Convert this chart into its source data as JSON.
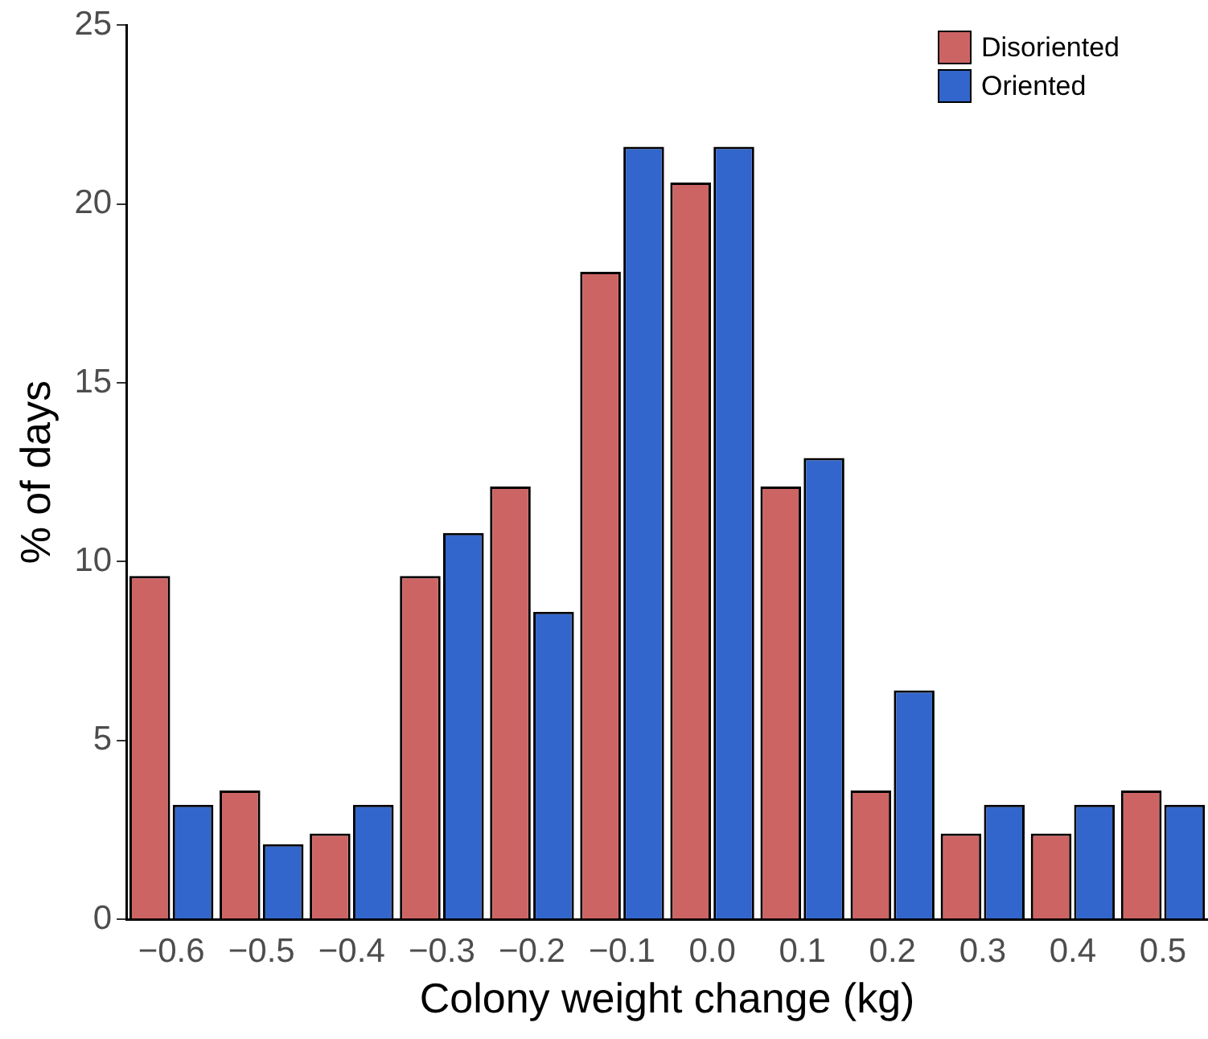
{
  "chart_data": {
    "type": "bar",
    "xlabel": "Colony weight change (kg)",
    "ylabel": "% of days",
    "categories": [
      "−0.6",
      "−0.5",
      "−0.4",
      "−0.3",
      "−0.2",
      "−0.1",
      "0.0",
      "0.1",
      "0.2",
      "0.3",
      "0.4",
      "0.5"
    ],
    "series": [
      {
        "name": "Disoriented",
        "color": "#cd6464",
        "values": [
          9.6,
          3.6,
          2.4,
          9.6,
          12.1,
          18.1,
          20.6,
          12.1,
          3.6,
          2.4,
          2.4,
          3.6
        ]
      },
      {
        "name": "Oriented",
        "color": "#3366cc",
        "values": [
          3.2,
          2.1,
          3.2,
          10.8,
          8.6,
          21.6,
          21.6,
          12.9,
          6.4,
          3.2,
          3.2,
          3.2
        ]
      }
    ],
    "ylim": [
      0,
      25
    ],
    "yticks": [
      0,
      5,
      10,
      15,
      20,
      25
    ],
    "grid": false,
    "legend": "top right"
  }
}
